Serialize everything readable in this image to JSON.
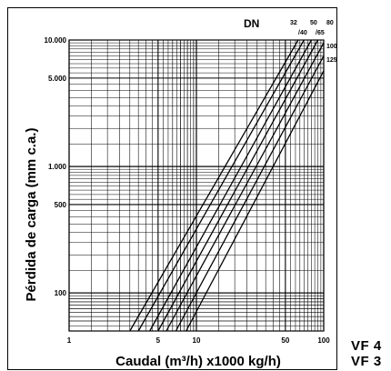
{
  "chart_data": {
    "type": "line",
    "title": "",
    "xlabel": "Caudal (m³/h) x1000 kg/h)",
    "ylabel": "Pérdida de carga (mm c.a.)",
    "xscale": "log",
    "yscale": "log",
    "xlim": [
      1,
      100
    ],
    "ylim": [
      50,
      10000
    ],
    "x_ticks": [
      {
        "value": 1,
        "label": "1"
      },
      {
        "value": 5,
        "label": "5"
      },
      {
        "value": 10,
        "label": "10"
      },
      {
        "value": 50,
        "label": "50"
      },
      {
        "value": 100,
        "label": "100"
      }
    ],
    "y_ticks": [
      {
        "value": 100,
        "label": "100"
      },
      {
        "value": 500,
        "label": "500"
      },
      {
        "value": 1000,
        "label": "1.000"
      },
      {
        "value": 5000,
        "label": "5.000"
      },
      {
        "value": 10000,
        "label": "10.000"
      }
    ],
    "grid": true,
    "legend_title": "DN",
    "series": [
      {
        "name": "32",
        "points": [
          [
            3.0,
            50
          ],
          [
            63,
            10000
          ]
        ]
      },
      {
        "name": "40",
        "points": [
          [
            3.5,
            50
          ],
          [
            70,
            10000
          ]
        ]
      },
      {
        "name": "50",
        "points": [
          [
            4.3,
            50
          ],
          [
            80,
            10000
          ]
        ]
      },
      {
        "name": "65",
        "points": [
          [
            5.0,
            50
          ],
          [
            90,
            10000
          ]
        ]
      },
      {
        "name": "80",
        "points": [
          [
            5.8,
            50
          ],
          [
            100,
            9500
          ]
        ]
      },
      {
        "name": "100",
        "points": [
          [
            6.9,
            50
          ],
          [
            100,
            7500
          ]
        ]
      },
      {
        "name": "125",
        "points": [
          [
            8.3,
            50
          ],
          [
            100,
            5700
          ]
        ]
      }
    ]
  },
  "side_labels": {
    "line1": "VF 4",
    "line2": "VF 3"
  }
}
